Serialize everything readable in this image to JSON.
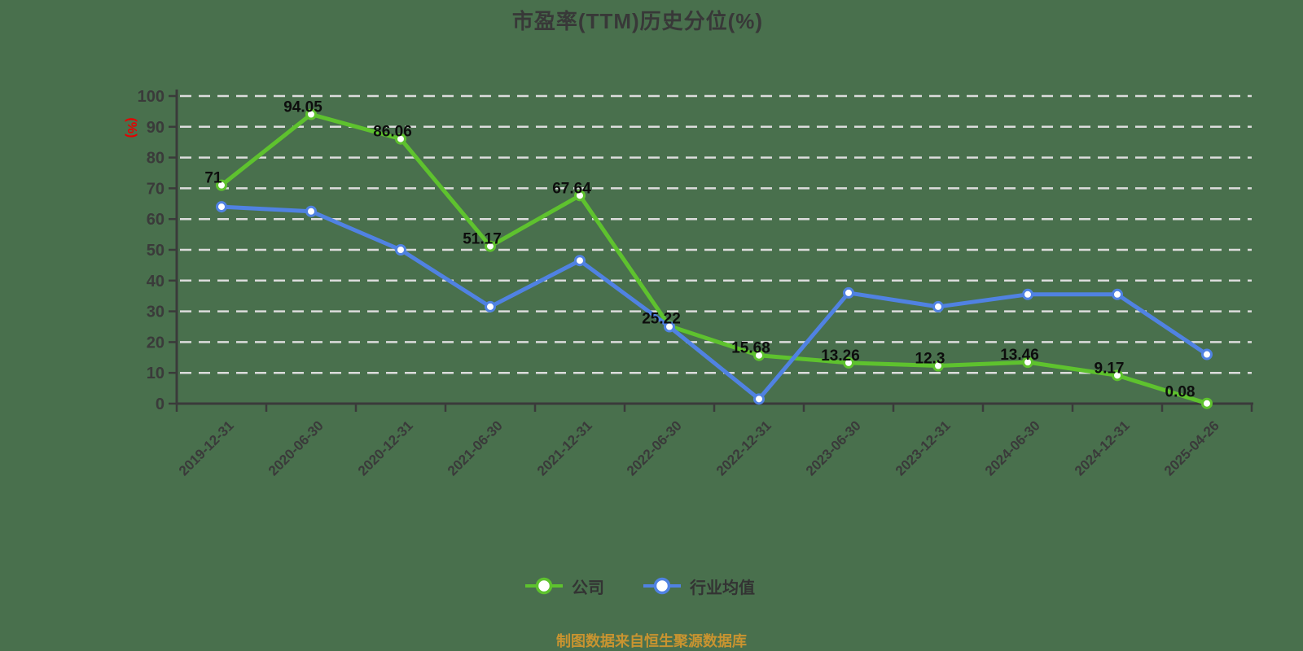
{
  "y_axis_unit": "(%)",
  "footer": "制图数据来自恒生聚源数据库",
  "legend": {
    "items": [
      {
        "label": "公司"
      },
      {
        "label": "行业均值"
      }
    ]
  },
  "colors": {
    "background": "#49704d",
    "company_line": "#5ec22e",
    "industry_line": "#5082e2",
    "grid": "#dcdcdc",
    "axis": "#3a3a3a",
    "title_text": "#383838",
    "tick_text": "#3a3a3a",
    "data_label": "#0d0d0d",
    "unit_label": "#e60000",
    "footer_text": "#c99430",
    "marker_fill": "#ffffff"
  },
  "chart_data": {
    "type": "line",
    "title": "市盈率(TTM)历史分位(%)",
    "xlabel": "",
    "ylabel": "(%)",
    "ylim": [
      0,
      100
    ],
    "y_ticks": [
      0,
      10,
      20,
      30,
      40,
      50,
      60,
      70,
      80,
      90,
      100
    ],
    "grid": "horizontal-dashed",
    "legend_position": "bottom",
    "categories": [
      "2019-12-31",
      "2020-06-30",
      "2020-12-31",
      "2021-06-30",
      "2021-12-31",
      "2022-06-30",
      "2022-12-31",
      "2023-06-30",
      "2023-12-31",
      "2024-06-30",
      "2024-12-31",
      "2025-04-26"
    ],
    "series": [
      {
        "name": "公司",
        "color": "#5ec22e",
        "values": [
          71,
          94.05,
          86.06,
          51.17,
          67.64,
          25.22,
          15.68,
          13.26,
          12.3,
          13.46,
          9.17,
          0.08
        ],
        "labels": [
          "71",
          "94.05",
          "86.06",
          "51.17",
          "67.64",
          "25.22",
          "15.68",
          "13.26",
          "12.3",
          "13.46",
          "9.17",
          "0.08"
        ],
        "show_labels": true
      },
      {
        "name": "行业均值",
        "color": "#5082e2",
        "values": [
          64,
          62.5,
          50,
          31.5,
          46.5,
          25,
          1.5,
          36,
          31.5,
          35.5,
          35.5,
          16
        ],
        "show_labels": false
      }
    ]
  }
}
